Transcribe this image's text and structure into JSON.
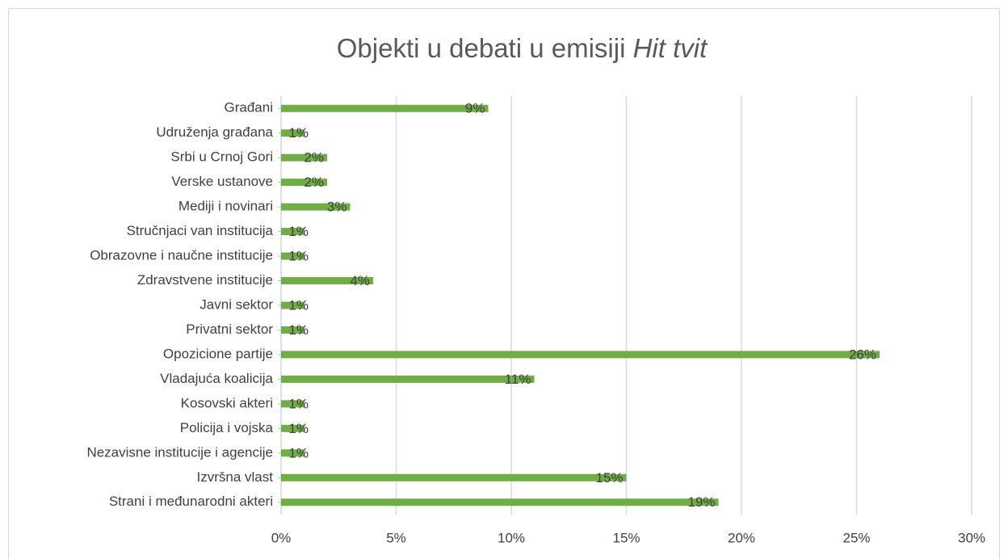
{
  "chart_data": {
    "type": "bar",
    "orientation": "horizontal",
    "title": "Objekti u debati u emisiji",
    "title_italic": "Hit tvit",
    "categories": [
      "Građani",
      "Udruženja građana",
      "Srbi u Crnoj Gori",
      "Verske ustanove",
      "Mediji i novinari",
      "Stručnjaci van institucija",
      "Obrazovne i naučne institucije",
      "Zdravstvene institucije",
      "Javni sektor",
      "Privatni sektor",
      "Opozicione partije",
      "Vladajuća koalicija",
      "Kosovski akteri",
      "Policija i vojska",
      "Nezavisne institucije i agencije",
      "Izvršna vlast",
      "Strani i međunarodni akteri"
    ],
    "values": [
      9,
      1,
      2,
      2,
      3,
      1,
      1,
      4,
      1,
      1,
      26,
      11,
      1,
      1,
      1,
      15,
      19
    ],
    "value_labels": [
      "9%",
      "1%",
      "2%",
      "2%",
      "3%",
      "1%",
      "1%",
      "4%",
      "1%",
      "1%",
      "26%",
      "11%",
      "1%",
      "1%",
      "1%",
      "15%",
      "19%"
    ],
    "color": "#70ad47",
    "xlim": [
      0,
      30
    ],
    "xticks": [
      {
        "value": 0,
        "label": "0%"
      },
      {
        "value": 5,
        "label": "5%"
      },
      {
        "value": 10,
        "label": "10%"
      },
      {
        "value": 15,
        "label": "15%"
      },
      {
        "value": 20,
        "label": "20%"
      },
      {
        "value": 25,
        "label": "25%"
      },
      {
        "value": 30,
        "label": "30%"
      }
    ],
    "grid": true
  }
}
